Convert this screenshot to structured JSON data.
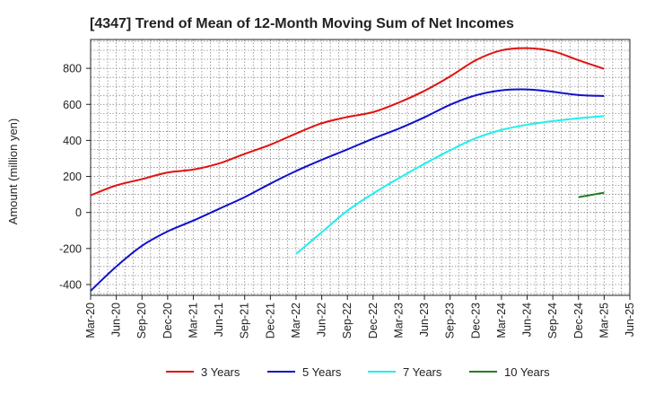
{
  "chart_data": {
    "type": "line",
    "title": "[4347]  Trend of Mean of 12-Month Moving Sum of Net Incomes",
    "xlabel": "",
    "ylabel": "Amount (million yen)",
    "ylim": [
      -460,
      960
    ],
    "yticks": [
      -400,
      -200,
      0,
      200,
      400,
      600,
      800
    ],
    "x_ticks": [
      "Mar-20",
      "Jun-20",
      "Sep-20",
      "Dec-20",
      "Mar-21",
      "Jun-21",
      "Sep-21",
      "Dec-21",
      "Mar-22",
      "Jun-22",
      "Sep-22",
      "Dec-22",
      "Mar-23",
      "Jun-23",
      "Sep-23",
      "Dec-23",
      "Mar-24",
      "Jun-24",
      "Sep-24",
      "Dec-24",
      "Mar-25",
      "Jun-25"
    ],
    "grid": true,
    "legend_position": "bottom",
    "series": [
      {
        "name": "3 Years",
        "color": "#e0120f",
        "x": [
          "Mar-20",
          "Jun-20",
          "Sep-20",
          "Dec-20",
          "Mar-21",
          "Jun-21",
          "Sep-21",
          "Dec-21",
          "Mar-22",
          "Jun-22",
          "Sep-22",
          "Dec-22",
          "Mar-23",
          "Jun-23",
          "Sep-23",
          "Dec-23",
          "Mar-24",
          "Jun-24",
          "Sep-24",
          "Dec-24",
          "Mar-25"
        ],
        "values": [
          95,
          150,
          185,
          222,
          238,
          272,
          325,
          376,
          438,
          495,
          530,
          557,
          610,
          675,
          755,
          845,
          900,
          912,
          895,
          845,
          797
        ]
      },
      {
        "name": "5 Years",
        "color": "#1010cc",
        "x": [
          "Mar-20",
          "Jun-20",
          "Sep-20",
          "Dec-20",
          "Mar-21",
          "Jun-21",
          "Sep-21",
          "Dec-21",
          "Mar-22",
          "Jun-22",
          "Sep-22",
          "Dec-22",
          "Mar-23",
          "Jun-23",
          "Sep-23",
          "Dec-23",
          "Mar-24",
          "Jun-24",
          "Sep-24",
          "Dec-24",
          "Mar-25"
        ],
        "values": [
          -435,
          -300,
          -185,
          -105,
          -45,
          20,
          85,
          160,
          230,
          292,
          350,
          410,
          465,
          528,
          598,
          650,
          678,
          683,
          670,
          652,
          647
        ]
      },
      {
        "name": "7 Years",
        "color": "#22eeee",
        "x": [
          "Mar-22",
          "Jun-22",
          "Sep-22",
          "Dec-22",
          "Mar-23",
          "Jun-23",
          "Sep-23",
          "Dec-23",
          "Mar-24",
          "Jun-24",
          "Sep-24",
          "Dec-24",
          "Mar-25"
        ],
        "values": [
          -230,
          -110,
          10,
          105,
          190,
          270,
          345,
          412,
          458,
          487,
          507,
          523,
          535
        ]
      },
      {
        "name": "10 Years",
        "color": "#208020",
        "x": [
          "Dec-24",
          "Mar-25"
        ],
        "values": [
          85,
          110
        ]
      }
    ]
  }
}
